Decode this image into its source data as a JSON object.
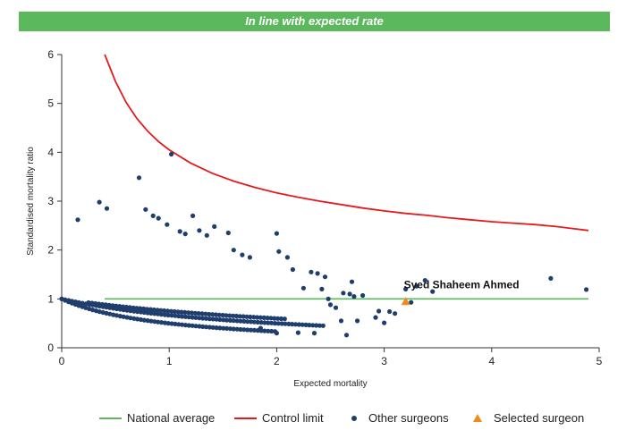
{
  "banner": {
    "text": "In line with expected rate"
  },
  "chart_data": {
    "type": "scatter",
    "xlabel": "Expected mortality",
    "ylabel": "Standardised mortality ratio",
    "xlim": [
      0,
      5
    ],
    "ylim": [
      0,
      6
    ],
    "xticks": [
      0,
      1,
      2,
      3,
      4,
      5
    ],
    "yticks": [
      0,
      1,
      2,
      3,
      4,
      5,
      6
    ],
    "grid": false,
    "legend_position": "bottom",
    "national_average": {
      "name": "National average",
      "color": "#5cb85c",
      "y": 1,
      "x_range": [
        0.4,
        4.9
      ]
    },
    "control_limit": {
      "name": "Control limit",
      "color": "#e41a1c",
      "points": [
        [
          0.4,
          6.0
        ],
        [
          0.5,
          5.45
        ],
        [
          0.6,
          5.02
        ],
        [
          0.7,
          4.69
        ],
        [
          0.8,
          4.43
        ],
        [
          0.9,
          4.22
        ],
        [
          1.0,
          4.05
        ],
        [
          1.2,
          3.78
        ],
        [
          1.4,
          3.57
        ],
        [
          1.6,
          3.41
        ],
        [
          1.8,
          3.28
        ],
        [
          2.0,
          3.17
        ],
        [
          2.2,
          3.08
        ],
        [
          2.4,
          3.0
        ],
        [
          2.6,
          2.93
        ],
        [
          2.8,
          2.86
        ],
        [
          3.0,
          2.8
        ],
        [
          3.2,
          2.75
        ],
        [
          3.4,
          2.71
        ],
        [
          3.6,
          2.66
        ],
        [
          3.8,
          2.62
        ],
        [
          4.0,
          2.58
        ],
        [
          4.2,
          2.55
        ],
        [
          4.4,
          2.52
        ],
        [
          4.6,
          2.48
        ],
        [
          4.9,
          2.4
        ]
      ]
    },
    "other_surgeons": {
      "name": "Other surgeons",
      "color": "#1f3e6e",
      "curves": [
        {
          "k": 1,
          "x_from": 0.0,
          "x_to": 2.0
        },
        {
          "k": 2,
          "x_from": 0.0,
          "x_to": 2.45
        },
        {
          "k": 3,
          "x_from": 0.25,
          "x_to": 2.1
        }
      ],
      "points": [
        [
          0.15,
          2.62
        ],
        [
          0.35,
          2.98
        ],
        [
          0.42,
          2.85
        ],
        [
          0.72,
          3.48
        ],
        [
          0.78,
          2.83
        ],
        [
          0.85,
          2.7
        ],
        [
          0.9,
          2.65
        ],
        [
          0.98,
          2.52
        ],
        [
          1.02,
          3.96
        ],
        [
          1.1,
          2.38
        ],
        [
          1.15,
          2.33
        ],
        [
          1.22,
          2.7
        ],
        [
          1.28,
          2.4
        ],
        [
          1.35,
          2.3
        ],
        [
          1.42,
          2.48
        ],
        [
          1.55,
          2.35
        ],
        [
          1.6,
          2.0
        ],
        [
          1.68,
          1.9
        ],
        [
          1.75,
          1.85
        ],
        [
          2.0,
          2.34
        ],
        [
          2.02,
          1.97
        ],
        [
          2.1,
          1.85
        ],
        [
          2.15,
          1.6
        ],
        [
          2.25,
          1.22
        ],
        [
          2.32,
          1.55
        ],
        [
          2.38,
          1.52
        ],
        [
          2.42,
          1.2
        ],
        [
          2.45,
          1.45
        ],
        [
          2.48,
          1.0
        ],
        [
          2.5,
          0.88
        ],
        [
          2.55,
          0.82
        ],
        [
          2.6,
          0.55
        ],
        [
          2.62,
          1.12
        ],
        [
          2.68,
          1.1
        ],
        [
          2.7,
          1.35
        ],
        [
          2.72,
          1.05
        ],
        [
          2.75,
          0.55
        ],
        [
          2.8,
          1.07
        ],
        [
          2.92,
          0.62
        ],
        [
          2.95,
          0.75
        ],
        [
          3.0,
          0.51
        ],
        [
          3.05,
          0.74
        ],
        [
          3.1,
          0.7
        ],
        [
          3.2,
          1.2
        ],
        [
          3.25,
          0.93
        ],
        [
          3.3,
          1.26
        ],
        [
          3.38,
          1.38
        ],
        [
          3.45,
          1.15
        ],
        [
          4.55,
          1.42
        ],
        [
          4.88,
          1.19
        ],
        [
          2.35,
          0.3
        ],
        [
          2.65,
          0.26
        ],
        [
          2.0,
          0.3
        ],
        [
          2.2,
          0.31
        ],
        [
          1.85,
          0.4
        ]
      ]
    },
    "selected_surgeon": {
      "name": "Selected surgeon",
      "color": "#f08a1c",
      "label": "Syed Shaheem Ahmed",
      "x": 3.2,
      "y": 0.95
    }
  }
}
